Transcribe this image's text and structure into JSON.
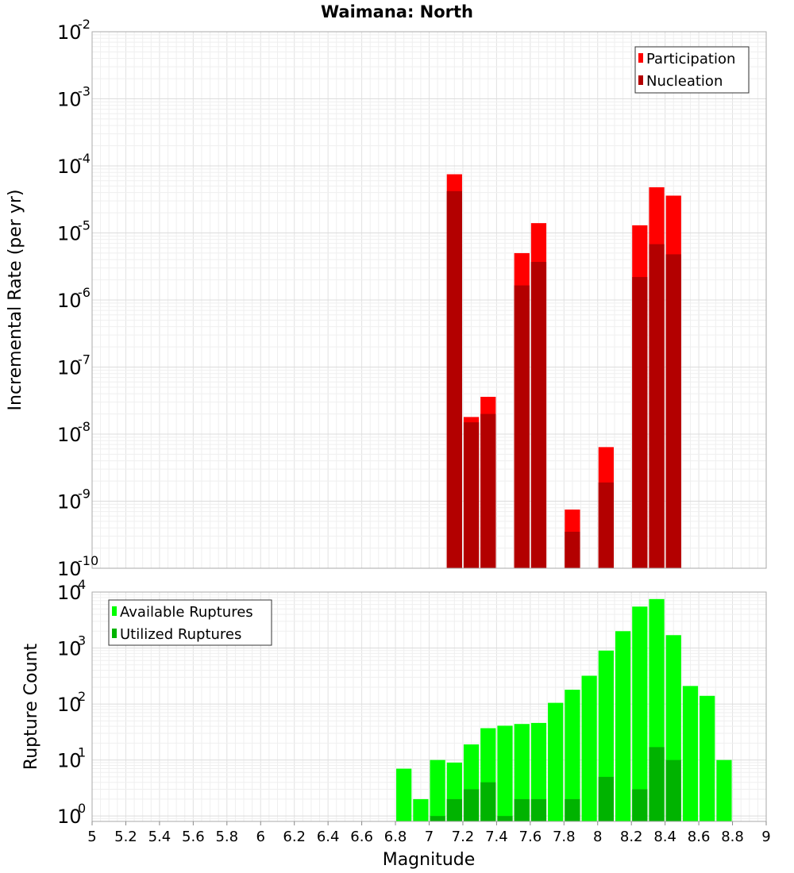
{
  "chart_data": {
    "title": "Waimana: North",
    "xlabel": "Magnitude",
    "xlim": [
      5,
      9
    ],
    "x_ticks": [
      "5",
      "5.2",
      "5.4",
      "5.6",
      "5.8",
      "6",
      "6.2",
      "6.4",
      "6.6",
      "6.8",
      "7",
      "7.2",
      "7.4",
      "7.6",
      "7.8",
      "8",
      "8.2",
      "8.4",
      "8.6",
      "8.8",
      "9"
    ],
    "bar_width": 0.1,
    "grid": true,
    "panels": [
      {
        "id": "rate",
        "type": "bar",
        "ylabel": "Incremental Rate (per yr)",
        "yscale": "log",
        "ylim": [
          1e-10,
          0.01
        ],
        "y_ticks": [
          {
            "base": "10",
            "exp": "-10",
            "value": 1e-10
          },
          {
            "base": "10",
            "exp": "-9",
            "value": 1e-09
          },
          {
            "base": "10",
            "exp": "-8",
            "value": 1e-08
          },
          {
            "base": "10",
            "exp": "-7",
            "value": 1e-07
          },
          {
            "base": "10",
            "exp": "-6",
            "value": 1e-06
          },
          {
            "base": "10",
            "exp": "-5",
            "value": 1e-05
          },
          {
            "base": "10",
            "exp": "-4",
            "value": 0.0001
          },
          {
            "base": "10",
            "exp": "-3",
            "value": 0.001
          },
          {
            "base": "10",
            "exp": "-2",
            "value": 0.01
          }
        ],
        "legend_position": "top-right",
        "series": [
          {
            "name": "Participation",
            "color": "#ff0000",
            "x": [
              7.15,
              7.25,
              7.35,
              7.55,
              7.65,
              7.85,
              8.05,
              8.25,
              8.35,
              8.45
            ],
            "values": [
              7.5e-05,
              1.8e-08,
              3.6e-08,
              5e-06,
              1.4e-05,
              7.5e-10,
              6.4e-09,
              1.3e-05,
              4.8e-05,
              3.6e-05
            ]
          },
          {
            "name": "Nucleation",
            "color": "#b30000",
            "x": [
              7.15,
              7.25,
              7.35,
              7.55,
              7.65,
              7.85,
              8.05,
              8.25,
              8.35,
              8.45
            ],
            "values": [
              4.2e-05,
              1.5e-08,
              2e-08,
              1.65e-06,
              3.7e-06,
              3.5e-10,
              1.9e-09,
              2.2e-06,
              6.8e-06,
              4.8e-06
            ]
          }
        ]
      },
      {
        "id": "count",
        "type": "bar",
        "ylabel": "Rupture Count",
        "yscale": "log",
        "ylim": [
          0.8,
          10000
        ],
        "y_ticks": [
          {
            "base": "10",
            "exp": "0",
            "value": 1
          },
          {
            "base": "10",
            "exp": "1",
            "value": 10
          },
          {
            "base": "10",
            "exp": "2",
            "value": 100
          },
          {
            "base": "10",
            "exp": "3",
            "value": 1000
          },
          {
            "base": "10",
            "exp": "4",
            "value": 10000
          }
        ],
        "legend_position": "top-left",
        "series": [
          {
            "name": "Available Ruptures",
            "color": "#00ff00",
            "x": [
              6.85,
              6.95,
              7.05,
              7.15,
              7.25,
              7.35,
              7.45,
              7.55,
              7.65,
              7.75,
              7.85,
              7.95,
              8.05,
              8.15,
              8.25,
              8.35,
              8.45,
              8.55,
              8.65,
              8.75
            ],
            "values": [
              7,
              2,
              10,
              9,
              19,
              37,
              41,
              44,
              46,
              105,
              180,
              320,
              900,
              2000,
              5500,
              7500,
              1700,
              210,
              140,
              10
            ]
          },
          {
            "name": "Utilized Ruptures",
            "color": "#00b300",
            "x": [
              7.05,
              7.15,
              7.25,
              7.35,
              7.45,
              7.55,
              7.65,
              7.85,
              8.05,
              8.25,
              8.35,
              8.45
            ],
            "values": [
              1,
              2,
              3,
              4,
              1,
              2,
              2,
              2,
              5,
              3,
              17,
              10
            ]
          }
        ]
      }
    ]
  }
}
